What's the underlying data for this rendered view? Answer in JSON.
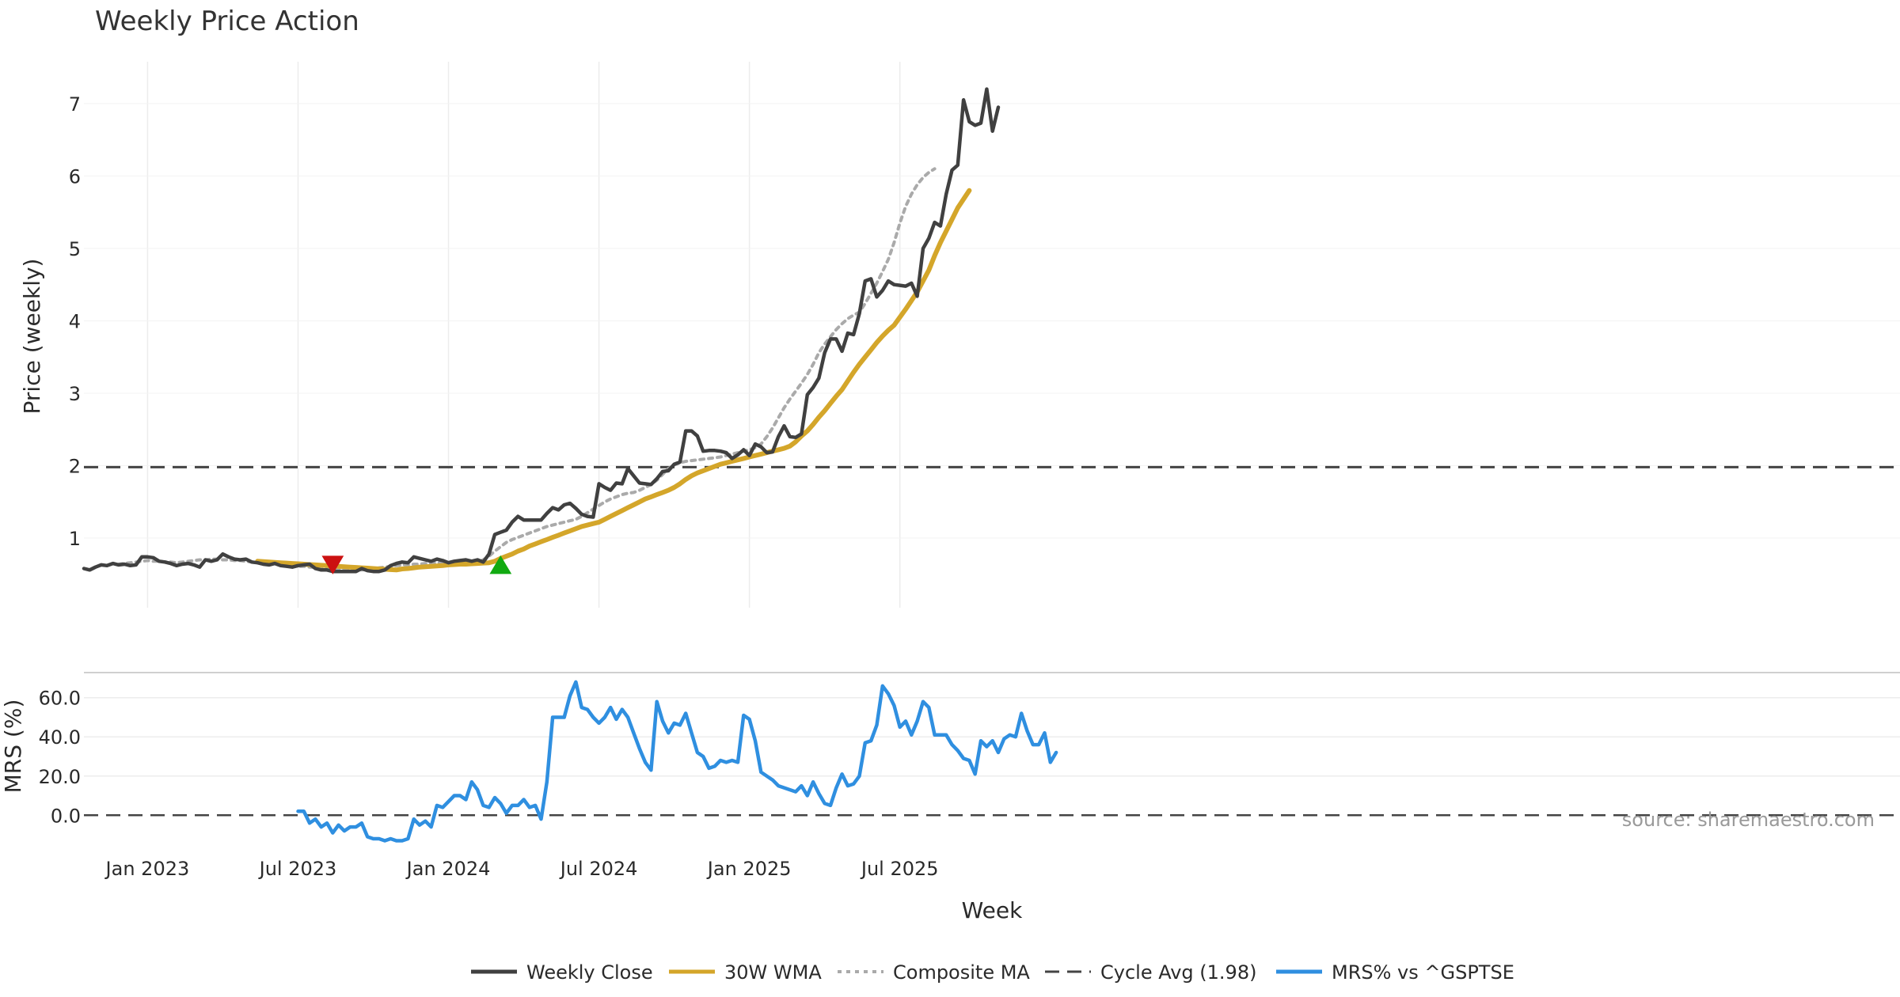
{
  "chart_data": {
    "type": "line",
    "title": "Weekly Price Action",
    "source": "source: sharemaestro.com",
    "x_axis": {
      "label": "Week",
      "ticks": [
        "Jan 2023",
        "Jul 2023",
        "Jan 2024",
        "Jul 2024",
        "Jan 2025",
        "Jul 2025"
      ]
    },
    "price_panel": {
      "ylabel": "Price (weekly)",
      "yticks": [
        "1",
        "2",
        "3",
        "4",
        "5",
        "6",
        "7"
      ],
      "ylim": [
        0.05,
        7.6
      ],
      "cycle_avg": 1.98,
      "markers": [
        {
          "type": "sell",
          "color": "#cc1111",
          "week": 43,
          "value": 0.63
        },
        {
          "type": "buy",
          "color": "#11aa11",
          "week": 72,
          "value": 0.63
        }
      ],
      "series": [
        {
          "name": "Weekly Close",
          "color": "#404040",
          "style": "solid",
          "start_week": 0,
          "values": [
            0.58,
            0.56,
            0.6,
            0.63,
            0.62,
            0.65,
            0.63,
            0.64,
            0.62,
            0.63,
            0.74,
            0.74,
            0.73,
            0.68,
            0.67,
            0.65,
            0.62,
            0.64,
            0.65,
            0.63,
            0.6,
            0.7,
            0.68,
            0.7,
            0.78,
            0.74,
            0.71,
            0.7,
            0.71,
            0.67,
            0.66,
            0.64,
            0.63,
            0.65,
            0.62,
            0.61,
            0.6,
            0.62,
            0.63,
            0.64,
            0.58,
            0.56,
            0.56,
            0.54,
            0.54,
            0.54,
            0.54,
            0.54,
            0.58,
            0.55,
            0.54,
            0.54,
            0.56,
            0.62,
            0.65,
            0.67,
            0.66,
            0.74,
            0.72,
            0.7,
            0.68,
            0.71,
            0.69,
            0.66,
            0.68,
            0.69,
            0.7,
            0.68,
            0.7,
            0.67,
            0.78,
            1.05,
            1.08,
            1.11,
            1.22,
            1.3,
            1.25,
            1.25,
            1.25,
            1.25,
            1.34,
            1.42,
            1.39,
            1.46,
            1.48,
            1.41,
            1.33,
            1.3,
            1.29,
            1.75,
            1.7,
            1.66,
            1.76,
            1.75,
            1.96,
            1.86,
            1.76,
            1.75,
            1.74,
            1.82,
            1.92,
            1.93,
            2.02,
            2.05,
            2.48,
            2.48,
            2.41,
            2.2,
            2.21,
            2.21,
            2.2,
            2.18,
            2.1,
            2.15,
            2.22,
            2.14,
            2.3,
            2.26,
            2.18,
            2.19,
            2.4,
            2.55,
            2.4,
            2.39,
            2.44,
            2.98,
            3.08,
            3.21,
            3.56,
            3.75,
            3.75,
            3.58,
            3.83,
            3.81,
            4.1,
            4.55,
            4.58,
            4.33,
            4.42,
            4.55,
            4.5,
            4.49,
            4.48,
            4.52,
            4.34,
            5.0,
            5.14,
            5.36,
            5.31,
            5.75,
            6.08,
            6.15,
            7.05,
            6.75,
            6.7,
            6.73,
            7.2,
            6.62,
            6.95
          ]
        },
        {
          "name": "30W WMA",
          "color": "#d4a62a",
          "style": "solid",
          "start_week": 30,
          "values": [
            0.68,
            0.675,
            0.67,
            0.665,
            0.66,
            0.655,
            0.65,
            0.645,
            0.64,
            0.635,
            0.63,
            0.625,
            0.62,
            0.615,
            0.61,
            0.605,
            0.6,
            0.595,
            0.59,
            0.585,
            0.58,
            0.575,
            0.57,
            0.565,
            0.56,
            0.575,
            0.58,
            0.59,
            0.6,
            0.605,
            0.61,
            0.615,
            0.62,
            0.63,
            0.635,
            0.64,
            0.64,
            0.645,
            0.65,
            0.655,
            0.66,
            0.68,
            0.72,
            0.75,
            0.78,
            0.82,
            0.85,
            0.89,
            0.92,
            0.95,
            0.98,
            1.01,
            1.04,
            1.07,
            1.1,
            1.13,
            1.16,
            1.18,
            1.2,
            1.22,
            1.26,
            1.3,
            1.34,
            1.38,
            1.42,
            1.46,
            1.5,
            1.54,
            1.57,
            1.6,
            1.63,
            1.66,
            1.7,
            1.75,
            1.81,
            1.86,
            1.9,
            1.93,
            1.96,
            1.99,
            2.02,
            2.04,
            2.06,
            2.08,
            2.1,
            2.12,
            2.14,
            2.16,
            2.18,
            2.2,
            2.22,
            2.24,
            2.27,
            2.33,
            2.41,
            2.48,
            2.57,
            2.67,
            2.76,
            2.86,
            2.96,
            3.05,
            3.17,
            3.29,
            3.4,
            3.5,
            3.6,
            3.7,
            3.79,
            3.87,
            3.94,
            4.05,
            4.16,
            4.28,
            4.4,
            4.55,
            4.7,
            4.9,
            5.08,
            5.24,
            5.4,
            5.56,
            5.68,
            5.8
          ]
        },
        {
          "name": "Composite MA",
          "color": "#aaaaaa",
          "style": "dotted",
          "start_week": 6,
          "values": [
            0.64,
            0.65,
            0.66,
            0.67,
            0.68,
            0.69,
            0.68,
            0.68,
            0.67,
            0.67,
            0.66,
            0.67,
            0.68,
            0.69,
            0.7,
            0.7,
            0.71,
            0.71,
            0.7,
            0.7,
            0.69,
            0.69,
            0.68,
            0.67,
            0.66,
            0.66,
            0.66,
            0.65,
            0.64,
            0.63,
            0.62,
            0.61,
            0.61,
            0.6,
            0.6,
            0.59,
            0.58,
            0.58,
            0.57,
            0.57,
            0.57,
            0.56,
            0.56,
            0.57,
            0.58,
            0.59,
            0.6,
            0.61,
            0.62,
            0.63,
            0.63,
            0.64,
            0.64,
            0.65,
            0.65,
            0.66,
            0.66,
            0.66,
            0.67,
            0.67,
            0.67,
            0.67,
            0.67,
            0.7,
            0.75,
            0.82,
            0.88,
            0.94,
            0.98,
            1.01,
            1.04,
            1.07,
            1.1,
            1.13,
            1.16,
            1.18,
            1.2,
            1.22,
            1.24,
            1.26,
            1.3,
            1.35,
            1.4,
            1.45,
            1.5,
            1.54,
            1.57,
            1.6,
            1.62,
            1.63,
            1.66,
            1.7,
            1.74,
            1.8,
            1.88,
            1.96,
            2.01,
            2.04,
            2.06,
            2.07,
            2.08,
            2.09,
            2.1,
            2.11,
            2.12,
            2.14,
            2.16,
            2.18,
            2.2,
            2.22,
            2.25,
            2.3,
            2.4,
            2.52,
            2.66,
            2.8,
            2.92,
            3.03,
            3.14,
            3.26,
            3.4,
            3.56,
            3.68,
            3.78,
            3.88,
            3.96,
            4.03,
            4.08,
            4.12,
            4.24,
            4.38,
            4.52,
            4.68,
            4.85,
            5.08,
            5.35,
            5.58,
            5.75,
            5.88,
            5.98,
            6.05,
            6.1
          ]
        }
      ]
    },
    "mrs_panel": {
      "ylabel": "MRS (%)",
      "yticks": [
        "0.0",
        "20.0",
        "40.0",
        "60.0"
      ],
      "ylim": [
        -12,
        72
      ],
      "series": [
        {
          "name": "MRS% vs ^GSPTSE",
          "color": "#2f8fe0",
          "style": "solid",
          "start_week": 37,
          "values": [
            2,
            2,
            -4,
            -2,
            -6,
            -4,
            -9,
            -5,
            -8,
            -6,
            -6,
            -4,
            -11,
            -12,
            -12,
            -13,
            -12,
            -13,
            -13,
            -12,
            -2,
            -5,
            -3,
            -6,
            5,
            4,
            7,
            10,
            10,
            8,
            17,
            13,
            5,
            4,
            9,
            6,
            1,
            5,
            5,
            8,
            4,
            5,
            -2,
            17,
            50,
            50,
            50,
            61,
            68,
            55,
            54,
            50,
            47,
            50,
            55,
            49,
            54,
            50,
            42,
            34,
            27,
            23,
            58,
            48,
            42,
            47,
            46,
            52,
            42,
            32,
            30,
            24,
            25,
            28,
            27,
            28,
            27,
            51,
            49,
            38,
            22,
            20,
            18,
            15,
            14,
            13,
            12,
            15,
            10,
            17,
            11,
            6,
            5,
            14,
            21,
            15,
            16,
            20,
            37,
            38,
            46,
            66,
            62,
            56,
            45,
            48,
            41,
            48,
            58,
            55,
            41,
            41,
            41,
            36,
            33,
            29,
            28,
            21,
            38,
            35,
            38,
            32,
            39,
            41,
            40,
            52,
            43,
            36,
            36,
            42,
            27,
            32
          ]
        }
      ]
    },
    "legend": [
      {
        "label": "Weekly Close",
        "color": "#404040",
        "style": "solid"
      },
      {
        "label": "30W WMA",
        "color": "#d4a62a",
        "style": "solid"
      },
      {
        "label": "Composite MA",
        "color": "#aaaaaa",
        "style": "dotted"
      },
      {
        "label": "Cycle Avg (1.98)",
        "color": "#444444",
        "style": "dashed"
      },
      {
        "label": "MRS% vs ^GSPTSE",
        "color": "#2f8fe0",
        "style": "solid"
      }
    ]
  }
}
